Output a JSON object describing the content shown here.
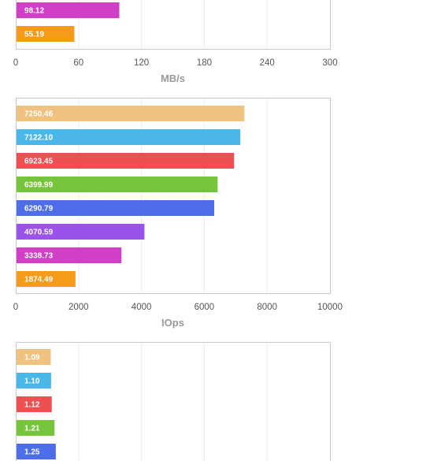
{
  "colors": {
    "peach": "#efc27f",
    "sky": "#4bb7e8",
    "red": "#ee5052",
    "green": "#76c43b",
    "blue": "#4e6de9",
    "purple": "#9a52ea",
    "magenta": "#d13fc6",
    "orange": "#f59a19",
    "frame": "#c8c8c8",
    "grid": "#ececec"
  },
  "chart_data": [
    {
      "type": "bar",
      "orientation": "horizontal",
      "xlabel": "MB/s",
      "xlim": [
        0,
        300
      ],
      "xticks": [
        "0",
        "60",
        "120",
        "180",
        "240",
        "300"
      ],
      "grid": true,
      "bars": [
        {
          "label": "98.12",
          "value": 98.12,
          "color": "magenta"
        },
        {
          "label": "55.19",
          "value": 55.19,
          "color": "orange"
        }
      ]
    },
    {
      "type": "bar",
      "orientation": "horizontal",
      "xlabel": "IOps",
      "xlim": [
        0,
        10000
      ],
      "xticks": [
        "0",
        "2000",
        "4000",
        "6000",
        "8000",
        "10000"
      ],
      "grid": true,
      "bars": [
        {
          "label": "7250.46",
          "value": 7250.46,
          "color": "peach"
        },
        {
          "label": "7122.10",
          "value": 7122.1,
          "color": "sky"
        },
        {
          "label": "6923.45",
          "value": 6923.45,
          "color": "red"
        },
        {
          "label": "6399.99",
          "value": 6399.99,
          "color": "green"
        },
        {
          "label": "6290.79",
          "value": 6290.79,
          "color": "blue"
        },
        {
          "label": "4070.59",
          "value": 4070.59,
          "color": "purple"
        },
        {
          "label": "3338.73",
          "value": 3338.73,
          "color": "magenta"
        },
        {
          "label": "1874.49",
          "value": 1874.49,
          "color": "orange"
        }
      ]
    },
    {
      "type": "bar",
      "orientation": "horizontal",
      "xlabel": "",
      "xlim": [
        0,
        10
      ],
      "xticks": [],
      "grid": true,
      "bars": [
        {
          "label": "1.09",
          "value": 1.09,
          "color": "peach"
        },
        {
          "label": "1.10",
          "value": 1.1,
          "color": "sky"
        },
        {
          "label": "1.12",
          "value": 1.12,
          "color": "red"
        },
        {
          "label": "1.21",
          "value": 1.21,
          "color": "green"
        },
        {
          "label": "1.25",
          "value": 1.25,
          "color": "blue"
        }
      ]
    }
  ]
}
